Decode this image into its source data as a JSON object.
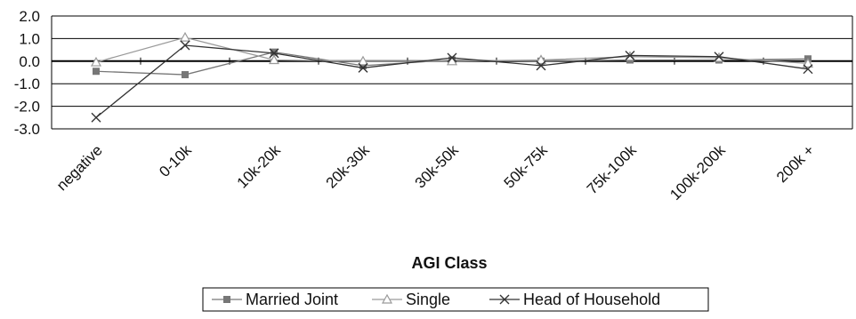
{
  "chart_data": {
    "type": "line",
    "title": "",
    "xlabel": "AGI Class",
    "ylabel": "",
    "categories": [
      "negative",
      "0-10k",
      "10k-20k",
      "20k-30k",
      "30k-50k",
      "50k-75k",
      "75k-100k",
      "100k-200k",
      "200k +"
    ],
    "ylim": [
      -3.0,
      2.0
    ],
    "yticks": [
      "2.0",
      "1.0",
      "0.0",
      "-1.0",
      "-2.0",
      "-3.0"
    ],
    "ytick_values": [
      2,
      1,
      0,
      -1,
      -2,
      -3
    ],
    "grid": true,
    "legend_position": "bottom",
    "series": [
      {
        "name": "Married Joint",
        "marker": "square",
        "color": "#777777",
        "values": [
          -0.45,
          -0.6,
          0.4,
          -0.2,
          0.05,
          0.0,
          0.05,
          0.05,
          0.1
        ]
      },
      {
        "name": "Single",
        "marker": "triangle",
        "color": "#9a9a9a",
        "values": [
          -0.05,
          1.05,
          0.05,
          0.0,
          0.0,
          0.05,
          0.2,
          0.15,
          -0.1
        ]
      },
      {
        "name": "Head of Household",
        "marker": "x",
        "color": "#333333",
        "values": [
          -2.5,
          0.7,
          0.35,
          -0.3,
          0.15,
          -0.2,
          0.25,
          0.2,
          -0.35
        ]
      }
    ]
  }
}
